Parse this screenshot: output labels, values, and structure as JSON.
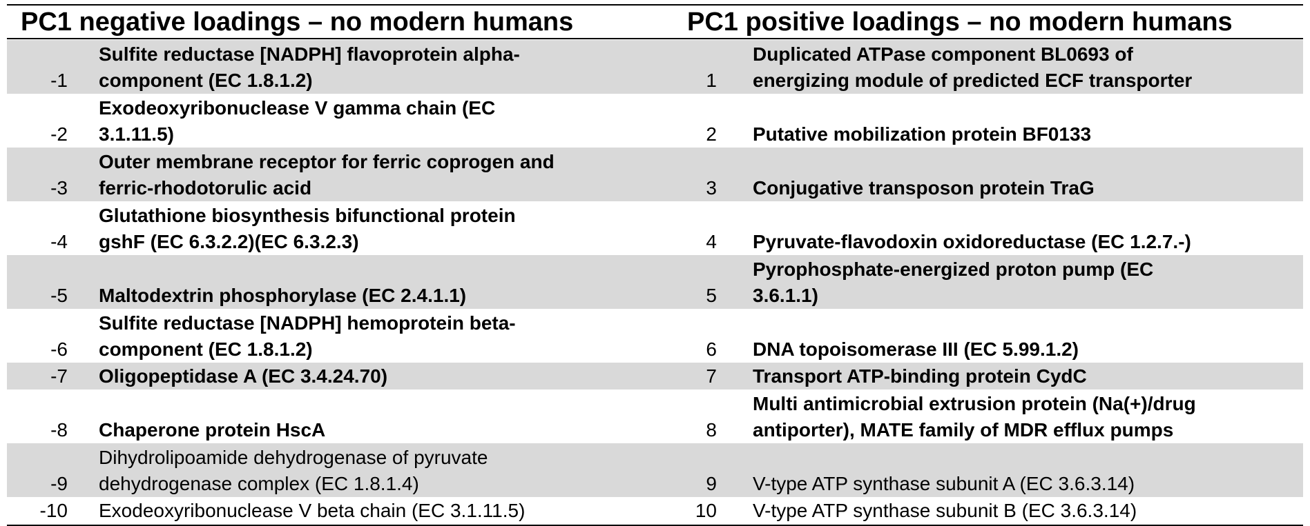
{
  "headers": {
    "left": "PC1 negative loadings – no modern humans",
    "right": "PC1 positive loadings – no modern humans"
  },
  "rows": [
    {
      "lnum": "-1",
      "ltext": [
        "Sulfite reductase [NADPH] flavoprotein alpha-",
        "component (EC 1.8.1.2)"
      ],
      "lbold": true,
      "rnum": "1",
      "rtext": [
        "Duplicated ATPase component BL0693 of",
        "energizing module of predicted ECF transporter"
      ],
      "rbold": true,
      "shaded": true,
      "lines": 2
    },
    {
      "lnum": "-2",
      "ltext": [
        "Exodeoxyribonuclease V gamma chain (EC",
        "3.1.11.5)"
      ],
      "lbold": true,
      "rnum": "2",
      "rtext": [
        "Putative mobilization protein BF0133"
      ],
      "rbold": true,
      "shaded": false,
      "lines": 2
    },
    {
      "lnum": "-3",
      "ltext": [
        "Outer membrane receptor for ferric coprogen and",
        "ferric-rhodotorulic acid"
      ],
      "lbold": true,
      "rnum": "3",
      "rtext": [
        "Conjugative transposon protein TraG"
      ],
      "rbold": true,
      "shaded": true,
      "lines": 2
    },
    {
      "lnum": "-4",
      "ltext": [
        "Glutathione biosynthesis bifunctional protein",
        "gshF (EC 6.3.2.2)(EC 6.3.2.3)"
      ],
      "lbold": true,
      "rnum": "4",
      "rtext": [
        "Pyruvate-flavodoxin oxidoreductase (EC 1.2.7.-)"
      ],
      "rbold": true,
      "shaded": false,
      "lines": 2
    },
    {
      "lnum": "-5",
      "ltext": [
        "Maltodextrin phosphorylase (EC 2.4.1.1)"
      ],
      "lbold": true,
      "rnum": "5",
      "rtext": [
        "Pyrophosphate-energized proton pump (EC",
        "3.6.1.1)"
      ],
      "rbold": true,
      "shaded": true,
      "lines": 2
    },
    {
      "lnum": "-6",
      "ltext": [
        "Sulfite reductase [NADPH] hemoprotein beta-",
        "component (EC 1.8.1.2)"
      ],
      "lbold": true,
      "rnum": "6",
      "rtext": [
        "DNA topoisomerase III (EC 5.99.1.2)"
      ],
      "rbold": true,
      "shaded": false,
      "lines": 2
    },
    {
      "lnum": "-7",
      "ltext": [
        "Oligopeptidase A (EC 3.4.24.70)"
      ],
      "lbold": true,
      "rnum": "7",
      "rtext": [
        "Transport ATP-binding protein CydC"
      ],
      "rbold": true,
      "shaded": true,
      "lines": 1
    },
    {
      "lnum": "-8",
      "ltext": [
        "Chaperone protein HscA"
      ],
      "lbold": true,
      "rnum": "8",
      "rtext": [
        "Multi antimicrobial extrusion protein (Na(+)/drug",
        "antiporter), MATE family of MDR efflux pumps"
      ],
      "rbold": true,
      "shaded": false,
      "lines": 2
    },
    {
      "lnum": "-9",
      "ltext": [
        "Dihydrolipoamide dehydrogenase of pyruvate",
        "dehydrogenase complex (EC 1.8.1.4)"
      ],
      "lbold": false,
      "rnum": "9",
      "rtext": [
        "V-type ATP synthase subunit A (EC 3.6.3.14)"
      ],
      "rbold": false,
      "shaded": true,
      "lines": 2
    },
    {
      "lnum": "-10",
      "ltext": [
        "Exodeoxyribonuclease V beta chain (EC 3.1.11.5)"
      ],
      "lbold": false,
      "rnum": "10",
      "rtext": [
        "V-type ATP synthase subunit B (EC 3.6.3.14)"
      ],
      "rbold": false,
      "shaded": false,
      "lines": 1
    }
  ]
}
